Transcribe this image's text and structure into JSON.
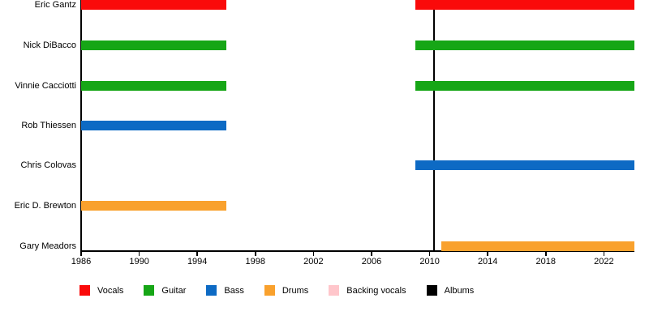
{
  "chart_data": {
    "type": "bar",
    "subtype": "band-members-timeline-gantt",
    "title": "",
    "xlabel": "",
    "ylabel": "",
    "grid": false,
    "legend_position": "bottom",
    "x_axis": {
      "range": [
        1986,
        2024.1
      ],
      "ticks": [
        1986,
        1990,
        1994,
        1998,
        2002,
        2006,
        2010,
        2014,
        2018,
        2022
      ]
    },
    "members": [
      {
        "name": "Eric Gantz",
        "role": "Vocals",
        "stints": [
          {
            "start": 1986,
            "end": 1996
          },
          {
            "start": 2009,
            "end": 2024.1
          }
        ]
      },
      {
        "name": "Nick DiBacco",
        "role": "Guitar",
        "stints": [
          {
            "start": 1986,
            "end": 1996
          },
          {
            "start": 2009,
            "end": 2024.1
          }
        ]
      },
      {
        "name": "Vinnie Cacciotti",
        "role": "Guitar",
        "stints": [
          {
            "start": 1986,
            "end": 1996
          },
          {
            "start": 2009,
            "end": 2024.1
          }
        ]
      },
      {
        "name": "Rob Thiessen",
        "role": "Bass",
        "stints": [
          {
            "start": 1986,
            "end": 1996
          }
        ]
      },
      {
        "name": "Chris Colovas",
        "role": "Bass",
        "stints": [
          {
            "start": 2009,
            "end": 2024.1
          }
        ]
      },
      {
        "name": "Eric D. Brewton",
        "role": "Drums",
        "stints": [
          {
            "start": 1986,
            "end": 1996
          }
        ]
      },
      {
        "name": "Gary Meadors",
        "role": "Drums",
        "stints": [
          {
            "start": 2010.8,
            "end": 2024.1
          }
        ]
      }
    ],
    "album_markers": [
      {
        "year": 2010.3
      }
    ],
    "legend": [
      {
        "label": "Vocals",
        "color": "#fa0a0a"
      },
      {
        "label": "Guitar",
        "color": "#16a616"
      },
      {
        "label": "Bass",
        "color": "#0d6ac4"
      },
      {
        "label": "Drums",
        "color": "#f9a12d"
      },
      {
        "label": "Backing vocals",
        "color": "#ffc6cb"
      },
      {
        "label": "Albums",
        "color": "#000000"
      }
    ]
  }
}
